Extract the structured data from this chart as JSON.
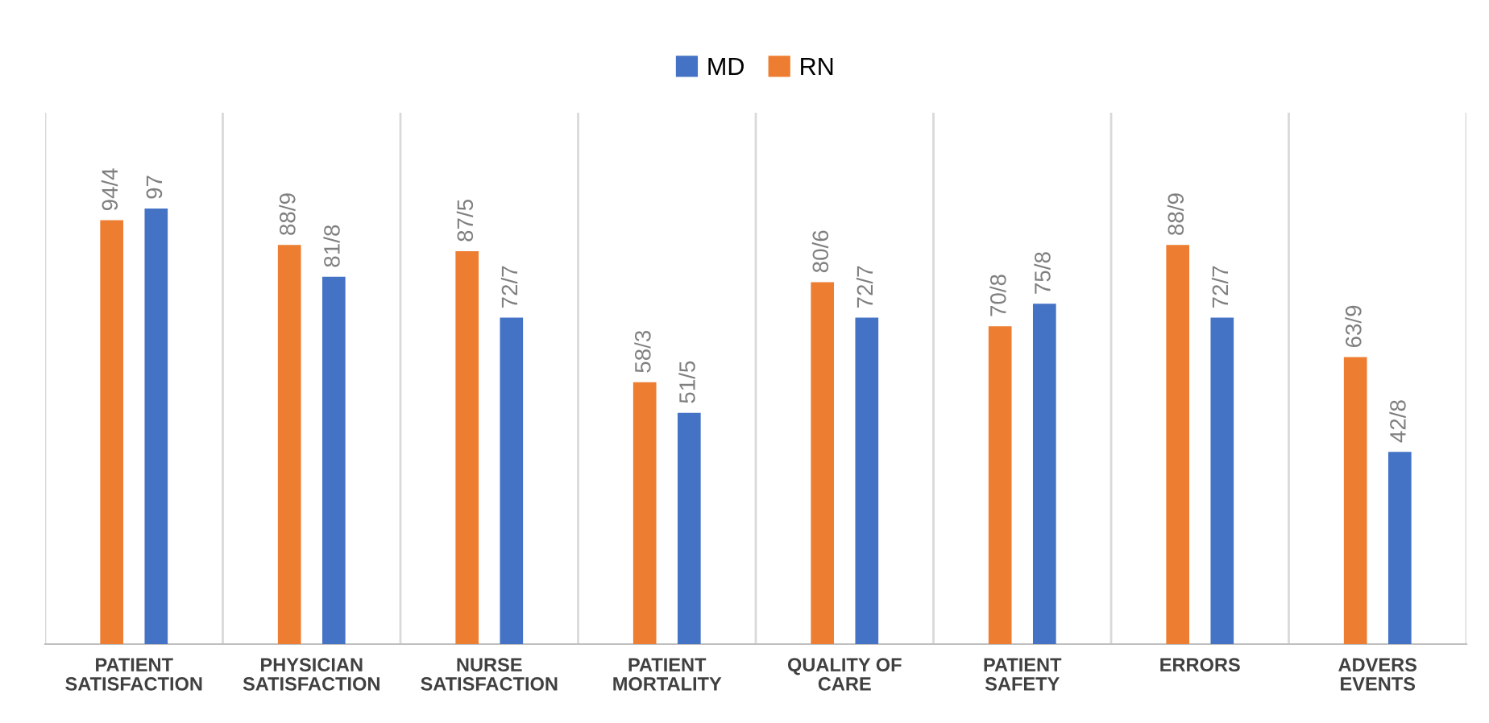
{
  "chart_data": {
    "type": "bar",
    "categories": [
      "PATIENT\nSATISFACTION",
      "PHYSICIAN\nSATISFACTION",
      "NURSE\nSATISFACTION",
      "PATIENT\nMORTALITY",
      "QUALITY OF\nCARE",
      "PATIENT\nSAFETY",
      "ERRORS",
      "ADVERS\nEVENTS"
    ],
    "series": [
      {
        "name": "RN",
        "color": "#ed7d31",
        "values": [
          94.4,
          88.9,
          87.5,
          58.3,
          80.6,
          70.8,
          88.9,
          63.9
        ],
        "value_labels": [
          "94/4",
          "88/9",
          "87/5",
          "58/3",
          "80/6",
          "70/8",
          "88/9",
          "63/9"
        ]
      },
      {
        "name": "MD",
        "color": "#4472c4",
        "values": [
          97,
          81.8,
          72.7,
          51.5,
          72.7,
          75.8,
          72.7,
          42.8
        ],
        "value_labels": [
          "97",
          "81/8",
          "72/7",
          "51/5",
          "72/7",
          "75/8",
          "72/7",
          "42/8"
        ]
      }
    ],
    "legend": "top",
    "grid": "x"
  }
}
